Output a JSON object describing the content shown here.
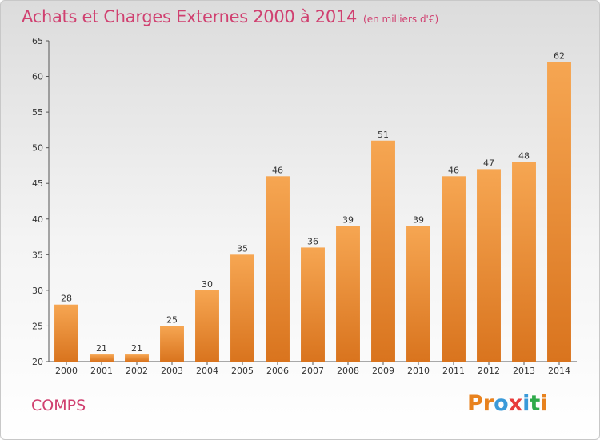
{
  "header": {
    "title": "Achats et Charges Externes 2000 à 2014",
    "unit": "(en milliers d'€)"
  },
  "footer": {
    "commune": "COMPS",
    "logo": "Proxiti",
    "logo_colors": [
      "#e8821e",
      "#e8821e",
      "#3a9ad9",
      "#e83c3c",
      "#3a9ad9",
      "#2faa4a",
      "#e8821e"
    ]
  },
  "chart_data": {
    "type": "bar",
    "title": "Achats et Charges Externes 2000 à 2014",
    "subtitle": "(en milliers d'€)",
    "xlabel": "",
    "ylabel": "",
    "categories": [
      "2000",
      "2001",
      "2002",
      "2003",
      "2004",
      "2005",
      "2006",
      "2007",
      "2008",
      "2009",
      "2010",
      "2011",
      "2012",
      "2013",
      "2014"
    ],
    "values": [
      28,
      21,
      21,
      25,
      30,
      35,
      46,
      36,
      39,
      51,
      39,
      46,
      47,
      48,
      62
    ],
    "ylim": [
      20,
      65
    ],
    "yticks": [
      20,
      25,
      30,
      35,
      40,
      45,
      50,
      55,
      60,
      65
    ],
    "grid": false,
    "bar_color_top": "#f6a652",
    "bar_color_bottom": "#d9741e"
  }
}
